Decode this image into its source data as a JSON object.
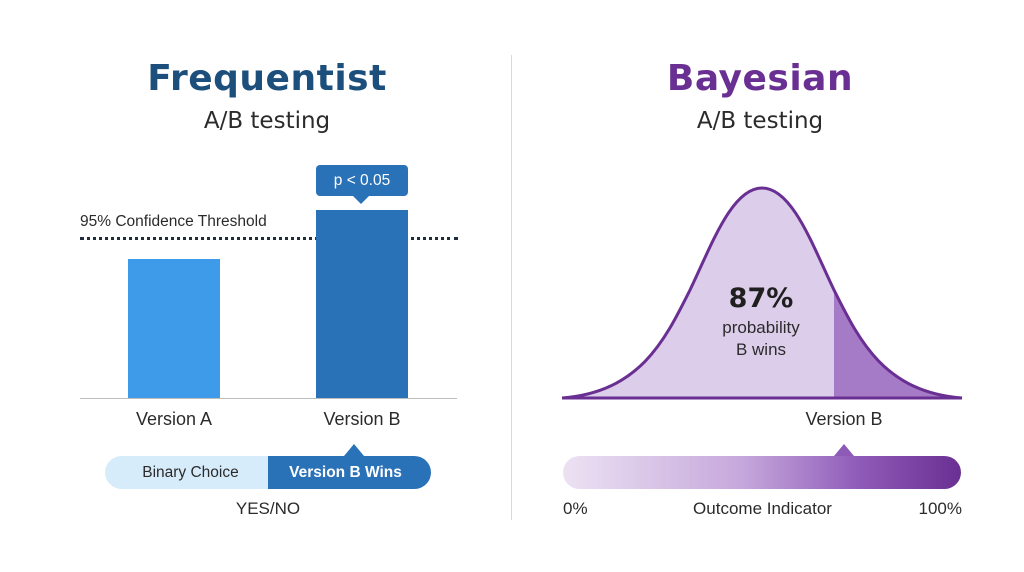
{
  "frequentist": {
    "title": "Frequentist",
    "subtitle": "A/B testing",
    "threshold_label": "95% Confidence Threshold",
    "p_badge": "p < 0.05",
    "x_labels": [
      "Version A",
      "Version B"
    ],
    "toggle": {
      "left_label": "Binary Choice",
      "right_label": "Version B Wins"
    },
    "caption": "YES/NO"
  },
  "bayesian": {
    "title": "Bayesian",
    "subtitle": "A/B testing",
    "probability_value": "87%",
    "probability_text_line1": "probability",
    "probability_text_line2": "B wins",
    "marker_label": "Version B",
    "scale": {
      "min_label": "0%",
      "mid_label": "Outcome Indicator",
      "max_label": "100%"
    }
  },
  "colors": {
    "freq_title": "#1d4f7c",
    "bar_a": "#3d9be9",
    "bar_b": "#2a72b8",
    "bayes_title": "#6a2f92",
    "bayes_fill": "#dccdea",
    "bayes_tail": "#a57bc8"
  }
}
